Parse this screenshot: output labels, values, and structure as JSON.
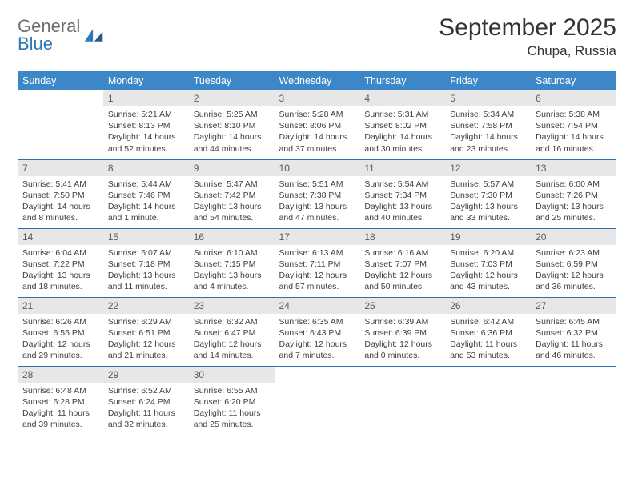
{
  "brand": {
    "part1": "General",
    "part2": "Blue"
  },
  "title": {
    "month": "September 2025",
    "location": "Chupa, Russia"
  },
  "colors": {
    "header_bg": "#3b87c8",
    "header_text": "#ffffff",
    "daynum_bg": "#e7e7e7",
    "row_divider": "#2f6fa8",
    "logo_gray": "#6e6e6e",
    "logo_blue": "#2f78b8"
  },
  "weekdays": [
    "Sunday",
    "Monday",
    "Tuesday",
    "Wednesday",
    "Thursday",
    "Friday",
    "Saturday"
  ],
  "weeks": [
    [
      null,
      {
        "n": "1",
        "sr": "Sunrise: 5:21 AM",
        "ss": "Sunset: 8:13 PM",
        "d1": "Daylight: 14 hours",
        "d2": "and 52 minutes."
      },
      {
        "n": "2",
        "sr": "Sunrise: 5:25 AM",
        "ss": "Sunset: 8:10 PM",
        "d1": "Daylight: 14 hours",
        "d2": "and 44 minutes."
      },
      {
        "n": "3",
        "sr": "Sunrise: 5:28 AM",
        "ss": "Sunset: 8:06 PM",
        "d1": "Daylight: 14 hours",
        "d2": "and 37 minutes."
      },
      {
        "n": "4",
        "sr": "Sunrise: 5:31 AM",
        "ss": "Sunset: 8:02 PM",
        "d1": "Daylight: 14 hours",
        "d2": "and 30 minutes."
      },
      {
        "n": "5",
        "sr": "Sunrise: 5:34 AM",
        "ss": "Sunset: 7:58 PM",
        "d1": "Daylight: 14 hours",
        "d2": "and 23 minutes."
      },
      {
        "n": "6",
        "sr": "Sunrise: 5:38 AM",
        "ss": "Sunset: 7:54 PM",
        "d1": "Daylight: 14 hours",
        "d2": "and 16 minutes."
      }
    ],
    [
      {
        "n": "7",
        "sr": "Sunrise: 5:41 AM",
        "ss": "Sunset: 7:50 PM",
        "d1": "Daylight: 14 hours",
        "d2": "and 8 minutes."
      },
      {
        "n": "8",
        "sr": "Sunrise: 5:44 AM",
        "ss": "Sunset: 7:46 PM",
        "d1": "Daylight: 14 hours",
        "d2": "and 1 minute."
      },
      {
        "n": "9",
        "sr": "Sunrise: 5:47 AM",
        "ss": "Sunset: 7:42 PM",
        "d1": "Daylight: 13 hours",
        "d2": "and 54 minutes."
      },
      {
        "n": "10",
        "sr": "Sunrise: 5:51 AM",
        "ss": "Sunset: 7:38 PM",
        "d1": "Daylight: 13 hours",
        "d2": "and 47 minutes."
      },
      {
        "n": "11",
        "sr": "Sunrise: 5:54 AM",
        "ss": "Sunset: 7:34 PM",
        "d1": "Daylight: 13 hours",
        "d2": "and 40 minutes."
      },
      {
        "n": "12",
        "sr": "Sunrise: 5:57 AM",
        "ss": "Sunset: 7:30 PM",
        "d1": "Daylight: 13 hours",
        "d2": "and 33 minutes."
      },
      {
        "n": "13",
        "sr": "Sunrise: 6:00 AM",
        "ss": "Sunset: 7:26 PM",
        "d1": "Daylight: 13 hours",
        "d2": "and 25 minutes."
      }
    ],
    [
      {
        "n": "14",
        "sr": "Sunrise: 6:04 AM",
        "ss": "Sunset: 7:22 PM",
        "d1": "Daylight: 13 hours",
        "d2": "and 18 minutes."
      },
      {
        "n": "15",
        "sr": "Sunrise: 6:07 AM",
        "ss": "Sunset: 7:18 PM",
        "d1": "Daylight: 13 hours",
        "d2": "and 11 minutes."
      },
      {
        "n": "16",
        "sr": "Sunrise: 6:10 AM",
        "ss": "Sunset: 7:15 PM",
        "d1": "Daylight: 13 hours",
        "d2": "and 4 minutes."
      },
      {
        "n": "17",
        "sr": "Sunrise: 6:13 AM",
        "ss": "Sunset: 7:11 PM",
        "d1": "Daylight: 12 hours",
        "d2": "and 57 minutes."
      },
      {
        "n": "18",
        "sr": "Sunrise: 6:16 AM",
        "ss": "Sunset: 7:07 PM",
        "d1": "Daylight: 12 hours",
        "d2": "and 50 minutes."
      },
      {
        "n": "19",
        "sr": "Sunrise: 6:20 AM",
        "ss": "Sunset: 7:03 PM",
        "d1": "Daylight: 12 hours",
        "d2": "and 43 minutes."
      },
      {
        "n": "20",
        "sr": "Sunrise: 6:23 AM",
        "ss": "Sunset: 6:59 PM",
        "d1": "Daylight: 12 hours",
        "d2": "and 36 minutes."
      }
    ],
    [
      {
        "n": "21",
        "sr": "Sunrise: 6:26 AM",
        "ss": "Sunset: 6:55 PM",
        "d1": "Daylight: 12 hours",
        "d2": "and 29 minutes."
      },
      {
        "n": "22",
        "sr": "Sunrise: 6:29 AM",
        "ss": "Sunset: 6:51 PM",
        "d1": "Daylight: 12 hours",
        "d2": "and 21 minutes."
      },
      {
        "n": "23",
        "sr": "Sunrise: 6:32 AM",
        "ss": "Sunset: 6:47 PM",
        "d1": "Daylight: 12 hours",
        "d2": "and 14 minutes."
      },
      {
        "n": "24",
        "sr": "Sunrise: 6:35 AM",
        "ss": "Sunset: 6:43 PM",
        "d1": "Daylight: 12 hours",
        "d2": "and 7 minutes."
      },
      {
        "n": "25",
        "sr": "Sunrise: 6:39 AM",
        "ss": "Sunset: 6:39 PM",
        "d1": "Daylight: 12 hours",
        "d2": "and 0 minutes."
      },
      {
        "n": "26",
        "sr": "Sunrise: 6:42 AM",
        "ss": "Sunset: 6:36 PM",
        "d1": "Daylight: 11 hours",
        "d2": "and 53 minutes."
      },
      {
        "n": "27",
        "sr": "Sunrise: 6:45 AM",
        "ss": "Sunset: 6:32 PM",
        "d1": "Daylight: 11 hours",
        "d2": "and 46 minutes."
      }
    ],
    [
      {
        "n": "28",
        "sr": "Sunrise: 6:48 AM",
        "ss": "Sunset: 6:28 PM",
        "d1": "Daylight: 11 hours",
        "d2": "and 39 minutes."
      },
      {
        "n": "29",
        "sr": "Sunrise: 6:52 AM",
        "ss": "Sunset: 6:24 PM",
        "d1": "Daylight: 11 hours",
        "d2": "and 32 minutes."
      },
      {
        "n": "30",
        "sr": "Sunrise: 6:55 AM",
        "ss": "Sunset: 6:20 PM",
        "d1": "Daylight: 11 hours",
        "d2": "and 25 minutes."
      },
      null,
      null,
      null,
      null
    ]
  ]
}
